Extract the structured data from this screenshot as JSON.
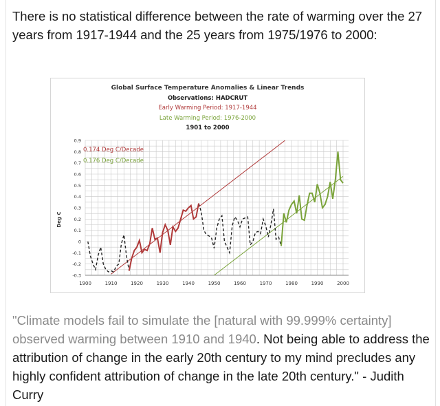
{
  "intro_text": "There is no statistical difference between the rate of warming over the 27 years from 1917-1944 and the 25 years from 1975/1976 to 2000:",
  "quote": {
    "highlighted": "\"Climate models fail to simulate the [natural with 99.999% certainty] observed warming between 1910 and 1940",
    "rest": ". Not being able to address the attribution of change in the early 20th century to my mind precludes any highly confident attribution of change in the late 20th century.\" - Judith Curry"
  },
  "colors": {
    "early": "#b03a3a",
    "late": "#7aa33a",
    "other": "#222222",
    "grid": "#c8c8c8"
  },
  "chart_data": {
    "type": "line",
    "title": "Global Surface Temperature Anomalies & Linear Trends",
    "subtitle_lines": [
      {
        "text": "Observations: HADCRUT",
        "color": "#222222"
      },
      {
        "text": "Early Warming Period: 1917-1944",
        "color": "#b03a3a"
      },
      {
        "text": "Late Warming Period: 1976-2000",
        "color": "#7aa33a"
      },
      {
        "text": "1901 to 2000",
        "color": "#222222"
      }
    ],
    "ylabel": "Deg C",
    "xlabel": "",
    "xlim": [
      1900,
      2000
    ],
    "ylim": [
      -0.3,
      0.9
    ],
    "xticks": [
      1900,
      1910,
      1920,
      1930,
      1940,
      1950,
      1960,
      1970,
      1980,
      1990,
      2000
    ],
    "yticks": [
      "-0.3",
      "-0.2",
      "-0.1",
      "0",
      "0.1",
      "0.2",
      "0.3",
      "0.4",
      "0.5",
      "0.6",
      "0.7",
      "0.8",
      "0.9"
    ],
    "grid": true,
    "annotations": [
      {
        "text": "0.174 Deg C/Decade",
        "color": "#b03a3a"
      },
      {
        "text": "0.176 Deg C/Decade",
        "color": "#7aa33a"
      }
    ],
    "x": [
      1901,
      1902,
      1903,
      1904,
      1905,
      1906,
      1907,
      1908,
      1909,
      1910,
      1911,
      1912,
      1913,
      1914,
      1915,
      1916,
      1917,
      1918,
      1919,
      1920,
      1921,
      1922,
      1923,
      1924,
      1925,
      1926,
      1927,
      1928,
      1929,
      1930,
      1931,
      1932,
      1933,
      1934,
      1935,
      1936,
      1937,
      1938,
      1939,
      1940,
      1941,
      1942,
      1943,
      1944,
      1945,
      1946,
      1947,
      1948,
      1949,
      1950,
      1951,
      1952,
      1953,
      1954,
      1955,
      1956,
      1957,
      1958,
      1959,
      1960,
      1961,
      1962,
      1963,
      1964,
      1965,
      1966,
      1967,
      1968,
      1969,
      1970,
      1971,
      1972,
      1973,
      1974,
      1975,
      1976,
      1977,
      1978,
      1979,
      1980,
      1981,
      1982,
      1983,
      1984,
      1985,
      1986,
      1987,
      1988,
      1989,
      1990,
      1991,
      1992,
      1993,
      1994,
      1995,
      1996,
      1997,
      1998,
      1999,
      2000
    ],
    "y": [
      0.0,
      -0.13,
      -0.2,
      -0.25,
      -0.12,
      -0.05,
      -0.2,
      -0.25,
      -0.27,
      -0.26,
      -0.27,
      -0.22,
      -0.2,
      -0.02,
      0.06,
      -0.13,
      -0.26,
      -0.15,
      -0.08,
      -0.05,
      0.01,
      -0.1,
      -0.07,
      -0.08,
      -0.02,
      0.12,
      0.02,
      0.03,
      -0.1,
      0.08,
      0.15,
      0.1,
      -0.03,
      0.13,
      0.09,
      0.12,
      0.2,
      0.28,
      0.27,
      0.3,
      0.32,
      0.2,
      0.22,
      0.34,
      0.26,
      0.1,
      0.06,
      0.05,
      0.03,
      -0.06,
      0.12,
      0.2,
      0.23,
      0.0,
      -0.05,
      -0.1,
      0.14,
      0.22,
      0.19,
      0.13,
      0.2,
      0.21,
      0.22,
      -0.03,
      0.0,
      0.08,
      0.09,
      0.07,
      0.2,
      0.14,
      0.04,
      0.15,
      0.29,
      0.02,
      0.04,
      -0.04,
      0.25,
      0.17,
      0.28,
      0.33,
      0.36,
      0.25,
      0.41,
      0.2,
      0.19,
      0.32,
      0.43,
      0.43,
      0.35,
      0.51,
      0.43,
      0.3,
      0.33,
      0.4,
      0.53,
      0.38,
      0.55,
      0.8,
      0.55,
      0.52
    ],
    "periods": {
      "early": [
        1917,
        1944
      ],
      "late": [
        1976,
        2000
      ]
    },
    "trend_lines": [
      {
        "name": "early",
        "x": [
          1910,
          1977.5
        ],
        "y": [
          -0.29,
          0.9
        ]
      },
      {
        "name": "late",
        "x": [
          1950,
          2000
        ],
        "y": [
          -0.3,
          0.58
        ]
      }
    ]
  }
}
